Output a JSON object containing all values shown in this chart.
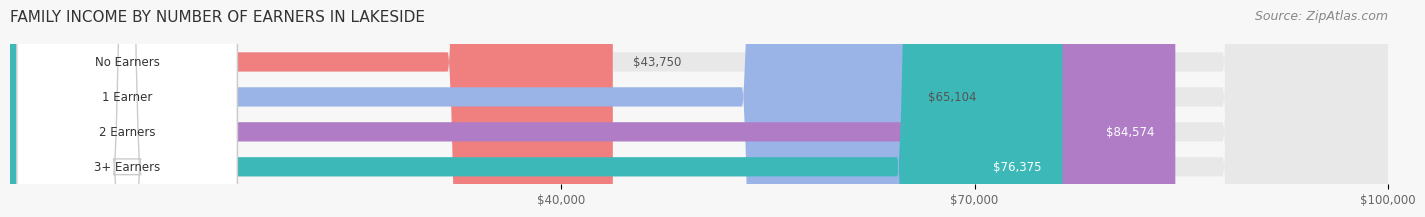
{
  "title": "FAMILY INCOME BY NUMBER OF EARNERS IN LAKESIDE",
  "source": "Source: ZipAtlas.com",
  "categories": [
    "No Earners",
    "1 Earner",
    "2 Earners",
    "3+ Earners"
  ],
  "values": [
    43750,
    65104,
    84574,
    76375
  ],
  "bar_colors": [
    "#f08080",
    "#9ab4e8",
    "#b07cc6",
    "#3db8b8"
  ],
  "bar_bg_color": "#f0f0f0",
  "label_values": [
    "$43,750",
    "$65,104",
    "$84,574",
    "$76,375"
  ],
  "xmin": 0,
  "xmax": 100000,
  "xticks": [
    40000,
    70000,
    100000
  ],
  "xtick_labels": [
    "$40,000",
    "$70,000",
    "$100,000"
  ],
  "title_fontsize": 11,
  "source_fontsize": 9,
  "bar_label_fontsize": 8.5,
  "category_fontsize": 8.5,
  "tick_fontsize": 8.5,
  "background_color": "#f7f7f7"
}
